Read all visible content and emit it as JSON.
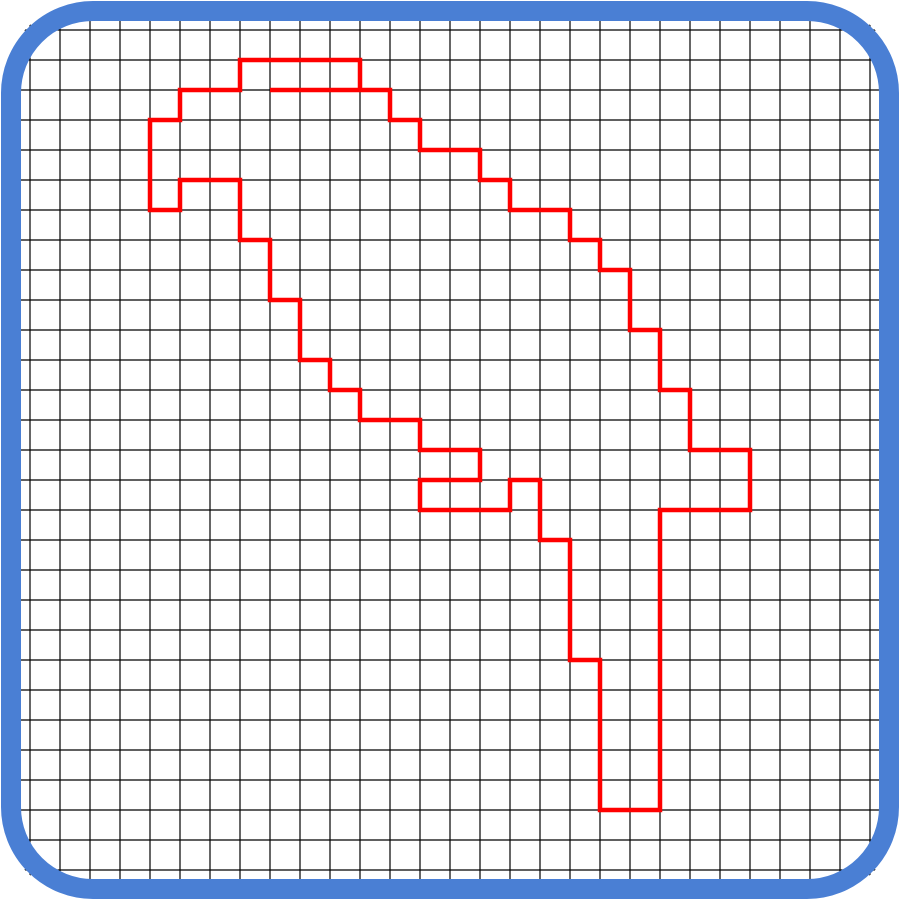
{
  "colors": {
    "frame": "#4A7FD4",
    "grid": "#000000",
    "outline": "#FF0000",
    "background": "#FFFFFF"
  },
  "grid": {
    "columns": 29,
    "rows": 29
  },
  "shape": {
    "name": "red-grid-outline",
    "vertices": [
      [
        8,
        2
      ],
      [
        12,
        2
      ],
      [
        12,
        3
      ],
      [
        13,
        3
      ],
      [
        13,
        4
      ],
      [
        15,
        4
      ],
      [
        15,
        5
      ],
      [
        16,
        5
      ],
      [
        16,
        6
      ],
      [
        18,
        6
      ],
      [
        18,
        7
      ],
      [
        19,
        7
      ],
      [
        19,
        8
      ],
      [
        20,
        8
      ],
      [
        20,
        10
      ],
      [
        21,
        10
      ],
      [
        21,
        12
      ],
      [
        22,
        12
      ],
      [
        22,
        14
      ],
      [
        24,
        14
      ],
      [
        24,
        16
      ],
      [
        21,
        16
      ],
      [
        21,
        26
      ],
      [
        19,
        26
      ],
      [
        19,
        21
      ],
      [
        18,
        21
      ],
      [
        18,
        17
      ],
      [
        17,
        17
      ],
      [
        17,
        15
      ],
      [
        16,
        15
      ],
      [
        16,
        16
      ],
      [
        13,
        16
      ],
      [
        13,
        15
      ],
      [
        15,
        15
      ],
      [
        15,
        14
      ],
      [
        13,
        14
      ],
      [
        13,
        13
      ],
      [
        11,
        13
      ],
      [
        11,
        12
      ],
      [
        10,
        12
      ],
      [
        10,
        11
      ],
      [
        9,
        11
      ],
      [
        9,
        9
      ],
      [
        8,
        9
      ],
      [
        8,
        7
      ],
      [
        7,
        7
      ],
      [
        7,
        5
      ],
      [
        5,
        5
      ],
      [
        5,
        6
      ],
      [
        4,
        6
      ],
      [
        4,
        3
      ],
      [
        5,
        3
      ],
      [
        5,
        2
      ],
      [
        7,
        2
      ],
      [
        7,
        1
      ],
      [
        11,
        1
      ],
      [
        11,
        2
      ]
    ]
  }
}
